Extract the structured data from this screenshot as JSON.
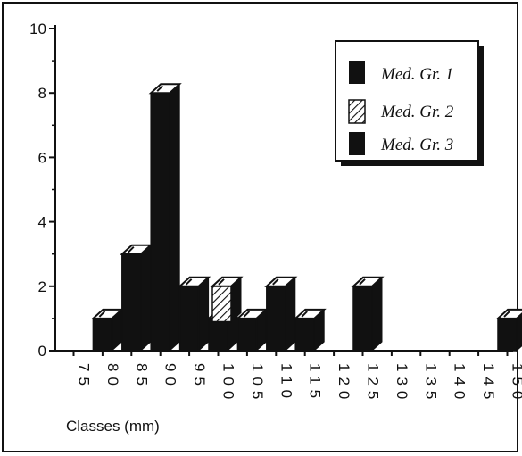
{
  "chart_data": {
    "type": "bar",
    "title": "",
    "xlabel": "Classes (mm)",
    "ylabel": "",
    "ylim": [
      0,
      10
    ],
    "yticks": [
      "0",
      "2",
      "4",
      "6",
      "8",
      "10"
    ],
    "categories": [
      "75",
      "80",
      "85",
      "90",
      "95",
      "100",
      "105",
      "110",
      "115",
      "120",
      "125",
      "130",
      "135",
      "140",
      "145",
      "150"
    ],
    "series": [
      {
        "name": "Med. Gr. 1",
        "values": [
          0,
          1,
          3,
          8,
          2,
          1,
          1,
          2,
          1,
          0,
          2,
          0,
          0,
          0,
          0,
          1
        ]
      },
      {
        "name": "Med. Gr. 2",
        "values": [
          0,
          0,
          0,
          0,
          0,
          2,
          0,
          0,
          0,
          0,
          0,
          0,
          0,
          0,
          0,
          0
        ]
      },
      {
        "name": "Med. Gr. 3",
        "values": [
          0,
          1,
          3,
          8,
          2,
          1,
          1,
          2,
          1,
          0,
          2,
          0,
          0,
          0,
          0,
          1
        ]
      }
    ],
    "grid": false,
    "legend_position": "top-right",
    "colors": {
      "bar": "#111111",
      "top": "#ffffff",
      "hatch": "#111111"
    }
  }
}
